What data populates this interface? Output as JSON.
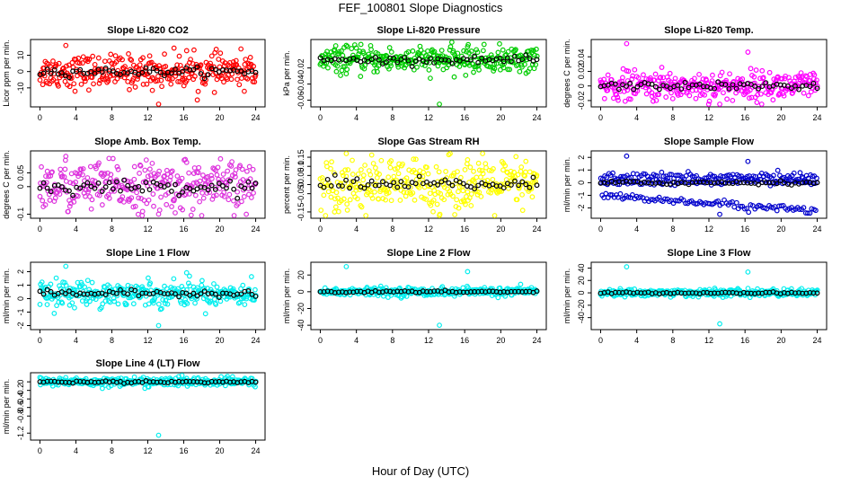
{
  "figure": {
    "title": "FEF_100801  Slope Diagnostics",
    "xlabel": "Hour of Day (UTC)"
  },
  "chart_data": [
    {
      "type": "scatter",
      "title": "Slope Li-820 CO2",
      "ylabel": "Licor ppm per min.",
      "xlim": [
        0,
        24
      ],
      "ylim": [
        -20,
        18
      ],
      "x_ticks": [
        0,
        4,
        8,
        12,
        16,
        20,
        24
      ],
      "y_ticks": [
        -10,
        0,
        10
      ],
      "series_color": "#ff0000",
      "scatter_spread": 5,
      "series_values_summary": {
        "center": 0,
        "max_observed": 16,
        "min_observed": -20
      },
      "highlight_color": "#000000"
    },
    {
      "type": "scatter",
      "title": "Slope Li-820 Pressure",
      "ylabel": "kPa per min.",
      "xlim": [
        0,
        24
      ],
      "ylim": [
        -0.065,
        0.012
      ],
      "x_ticks": [
        0,
        4,
        8,
        12,
        16,
        20,
        24
      ],
      "y_ticks": [
        -0.06,
        -0.04,
        -0.02
      ],
      "series_color": "#00cc00",
      "scatter_spread": 0.008,
      "series_values_summary": {
        "center": -0.01,
        "max_observed": 0.008,
        "min_observed": -0.065
      },
      "highlight_color": "#000000"
    },
    {
      "type": "scatter",
      "title": "Slope Li-820 Temp.",
      "ylabel": "degrees C per min.",
      "xlim": [
        0,
        24
      ],
      "ylim": [
        -0.025,
        0.06
      ],
      "x_ticks": [
        0,
        4,
        8,
        12,
        16,
        20,
        24
      ],
      "y_ticks": [
        -0.02,
        0.0,
        0.02,
        0.04
      ],
      "series_color": "#ff00ff",
      "scatter_spread": 0.01,
      "series_values_summary": {
        "center": 0.0,
        "max_observed": 0.058,
        "min_observed": -0.025
      },
      "highlight_color": "#000000"
    },
    {
      "type": "scatter",
      "title": "Slope Amb. Box Temp.",
      "ylabel": "degrees C per min.",
      "xlim": [
        0,
        24
      ],
      "ylim": [
        -0.105,
        0.12
      ],
      "x_ticks": [
        0,
        4,
        8,
        12,
        16,
        20,
        24
      ],
      "y_ticks": [
        -0.1,
        0.0,
        0.05
      ],
      "series_color": "#dd33dd",
      "scatter_spread": 0.045,
      "series_values_summary": {
        "center": 0.0,
        "max_observed": 0.11,
        "min_observed": -0.1
      },
      "highlight_color": "#000000"
    },
    {
      "type": "scatter",
      "title": "Slope Gas Stream RH",
      "ylabel": "percent per min.",
      "xlim": [
        0,
        24
      ],
      "ylim": [
        -0.17,
        0.17
      ],
      "x_ticks": [
        0,
        4,
        8,
        12,
        16,
        20,
        24
      ],
      "y_ticks": [
        -0.15,
        -0.05,
        0.0,
        0.05,
        0.1,
        0.15
      ],
      "series_color": "#ffff00",
      "scatter_spread": 0.07,
      "series_values_summary": {
        "center": 0.0,
        "max_observed": 0.17,
        "min_observed": -0.17
      },
      "highlight_color": "#000000"
    },
    {
      "type": "scatter",
      "title": "Slope Sample Flow",
      "ylabel": "ml/min per min.",
      "xlim": [
        0,
        24
      ],
      "ylim": [
        -2.6,
        2.3
      ],
      "x_ticks": [
        0,
        4,
        8,
        12,
        16,
        20,
        24
      ],
      "y_ticks": [
        -2,
        -1,
        0,
        1,
        2
      ],
      "series_color": "#0000cc",
      "scatter_spread": 0.3,
      "series_values_summary": {
        "upper_band": 0.5,
        "middle_band": 0.0,
        "lower_band_start": -1.0,
        "lower_band_end": -2.3,
        "max_observed": 2.1,
        "min_observed": -2.5
      },
      "highlight_color": "#000000"
    },
    {
      "type": "scatter",
      "title": "Slope Line 1 Flow",
      "ylabel": "ml/min per min.",
      "xlim": [
        0,
        24
      ],
      "ylim": [
        -2.1,
        2.5
      ],
      "x_ticks": [
        0,
        4,
        8,
        12,
        16,
        20,
        24
      ],
      "y_ticks": [
        -2,
        -1,
        0,
        1,
        2
      ],
      "series_color": "#00eeee",
      "scatter_spread": 0.45,
      "series_values_summary": {
        "center": 0.4,
        "max_observed": 2.4,
        "min_observed": -2.0
      },
      "highlight_color": "#000000"
    },
    {
      "type": "scatter",
      "title": "Slope Line 2 Flow",
      "ylabel": "ml/min per min.",
      "xlim": [
        0,
        24
      ],
      "ylim": [
        -42,
        32
      ],
      "x_ticks": [
        0,
        4,
        8,
        12,
        16,
        20,
        24
      ],
      "y_ticks": [
        -40,
        -20,
        0,
        20
      ],
      "series_color": "#00eeee",
      "scatter_spread": 2.5,
      "series_values_summary": {
        "center": 0,
        "max_observed": 30,
        "min_observed": -40
      },
      "highlight_color": "#000000"
    },
    {
      "type": "scatter",
      "title": "Slope Line 3 Flow",
      "ylabel": "ml/min per min.",
      "xlim": [
        0,
        24
      ],
      "ylim": [
        -55,
        45
      ],
      "x_ticks": [
        0,
        4,
        8,
        12,
        16,
        20,
        24
      ],
      "y_ticks": [
        -40,
        -20,
        0,
        20,
        40
      ],
      "series_color": "#00eeee",
      "scatter_spread": 3,
      "series_values_summary": {
        "center": 0,
        "max_observed": 42,
        "min_observed": -50
      },
      "highlight_color": "#000000"
    },
    {
      "type": "scatter",
      "title": "Slope Line 4 (LT) Flow",
      "ylabel": "ml/min per min.",
      "xlim": [
        0,
        24
      ],
      "ylim": [
        -1.3,
        0.15
      ],
      "x_ticks": [
        0,
        4,
        8,
        12,
        16,
        20,
        24
      ],
      "y_ticks": [
        -1.2,
        -0.8,
        -0.6,
        -0.4,
        -0.2,
        0.0
      ],
      "series_color": "#00eeee",
      "scatter_spread": 0.05,
      "series_values_summary": {
        "center": 0.0,
        "max_observed": 0.1,
        "min_observed": -1.25
      },
      "highlight_color": "#000000"
    }
  ]
}
